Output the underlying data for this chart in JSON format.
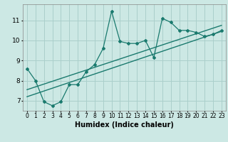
{
  "title": "",
  "xlabel": "Humidex (Indice chaleur)",
  "ylabel": "",
  "bg_color": "#cce8e4",
  "grid_color": "#aacfcb",
  "line_color": "#1a7a6e",
  "xlim": [
    -0.5,
    23.5
  ],
  "ylim": [
    6.5,
    11.8
  ],
  "yticks": [
    7,
    8,
    9,
    10,
    11
  ],
  "xticks": [
    0,
    1,
    2,
    3,
    4,
    5,
    6,
    7,
    8,
    9,
    10,
    11,
    12,
    13,
    14,
    15,
    16,
    17,
    18,
    19,
    20,
    21,
    22,
    23
  ],
  "data_x": [
    0,
    1,
    2,
    3,
    4,
    5,
    6,
    7,
    8,
    9,
    10,
    11,
    12,
    13,
    14,
    15,
    16,
    17,
    18,
    19,
    20,
    21,
    22,
    23
  ],
  "data_y": [
    8.6,
    8.0,
    6.95,
    6.75,
    6.95,
    7.8,
    7.8,
    8.45,
    8.8,
    9.6,
    11.45,
    9.95,
    9.85,
    9.85,
    10.0,
    9.15,
    11.1,
    10.9,
    10.5,
    10.5,
    10.4,
    10.2,
    10.3,
    10.5
  ],
  "line1_x": [
    0,
    23
  ],
  "line1_y": [
    7.2,
    10.45
  ],
  "line2_x": [
    0,
    23
  ],
  "line2_y": [
    7.55,
    10.75
  ],
  "xlabel_fontsize": 7,
  "tick_fontsize": 6.5
}
